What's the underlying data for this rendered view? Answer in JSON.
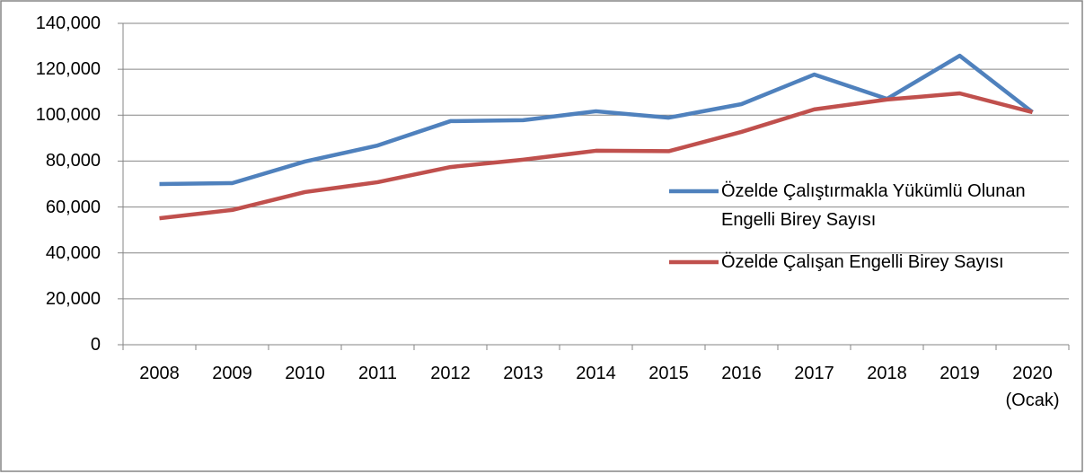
{
  "chart_data": {
    "type": "line",
    "categories": [
      "2008",
      "2009",
      "2010",
      "2011",
      "2012",
      "2013",
      "2014",
      "2015",
      "2016",
      "2017",
      "2018",
      "2019",
      "2020 (Ocak)"
    ],
    "series": [
      {
        "name": "Özelde Çalıştırmakla Yükümlü Olunan Engelli Birey Sayısı",
        "color": "#4f81bd",
        "values": [
          70000,
          70400,
          79800,
          86800,
          97400,
          97800,
          101700,
          98900,
          104800,
          117700,
          107100,
          125900,
          101300
        ]
      },
      {
        "name": "Özelde Çalışan Engelli Birey Sayısı",
        "color": "#c0504d",
        "values": [
          55100,
          58700,
          66500,
          70800,
          77400,
          80600,
          84500,
          84300,
          92700,
          102500,
          106800,
          109500,
          101300
        ]
      }
    ],
    "ylim": [
      0,
      140000
    ],
    "yticks": [
      0,
      {
        "value": 20000,
        "label": "20,000"
      },
      {
        "value": 40000,
        "label": "40,000"
      },
      {
        "value": 60000,
        "label": "60,000"
      },
      {
        "value": 80000,
        "label": "80,000"
      },
      {
        "value": 100000,
        "label": "100,000"
      },
      {
        "value": 120000,
        "label": "120,000"
      },
      {
        "value": 140000,
        "label": "140,000"
      }
    ],
    "grid": true,
    "legend": "right"
  }
}
